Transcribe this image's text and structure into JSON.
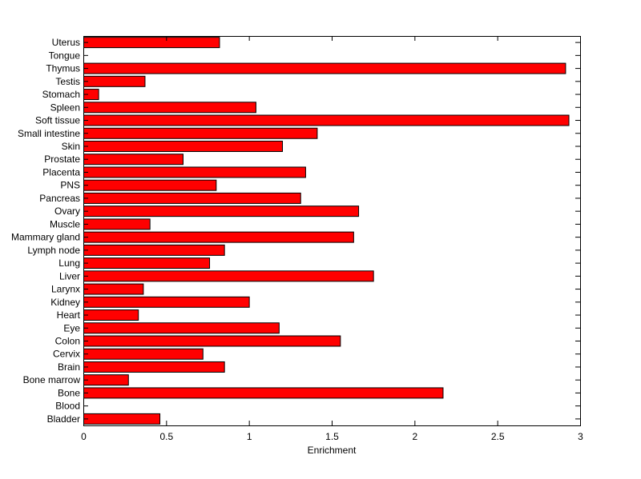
{
  "chart_data": {
    "type": "bar",
    "orientation": "horizontal",
    "title": "",
    "xlabel": "Enrichment",
    "ylabel": "",
    "xlim": [
      0,
      3
    ],
    "xticks": [
      0,
      0.5,
      1,
      1.5,
      2,
      2.5,
      3
    ],
    "xtick_labels": [
      "0",
      "0.5",
      "1",
      "1.5",
      "2",
      "2.5",
      "3"
    ],
    "grid": false,
    "bar_color": "#ff0000",
    "edge_color": "#000000",
    "categories": [
      "Bladder",
      "Blood",
      "Bone",
      "Bone marrow",
      "Brain",
      "Cervix",
      "Colon",
      "Eye",
      "Heart",
      "Kidney",
      "Larynx",
      "Liver",
      "Lung",
      "Lymph node",
      "Mammary gland",
      "Muscle",
      "Ovary",
      "Pancreas",
      "PNS",
      "Placenta",
      "Prostate",
      "Skin",
      "Small intestine",
      "Soft tissue",
      "Spleen",
      "Stomach",
      "Testis",
      "Thymus",
      "Tongue",
      "Uterus"
    ],
    "values": [
      0.46,
      0.0,
      2.17,
      0.27,
      0.85,
      0.72,
      1.55,
      1.18,
      0.33,
      1.0,
      0.36,
      1.75,
      0.76,
      0.85,
      1.63,
      0.4,
      1.66,
      1.31,
      0.8,
      1.34,
      0.6,
      1.2,
      1.41,
      2.93,
      1.04,
      0.09,
      0.37,
      2.91,
      0.0,
      0.82
    ]
  }
}
